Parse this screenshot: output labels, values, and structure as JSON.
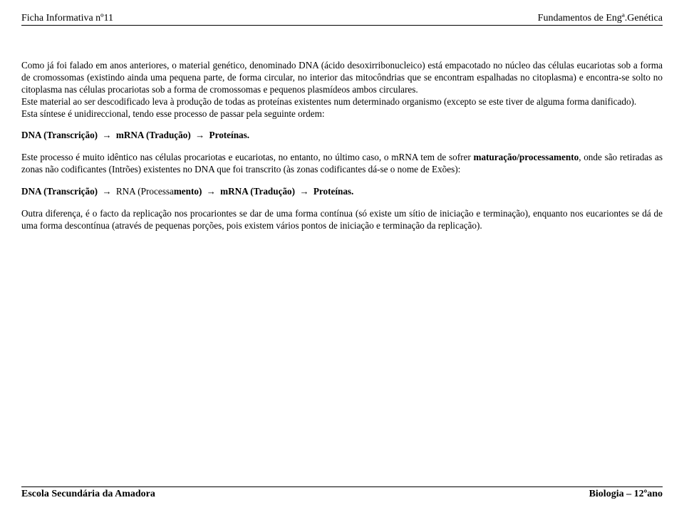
{
  "header": {
    "left": "Ficha Informativa nº11",
    "right": "Fundamentos de Engª.Genética"
  },
  "paragraphs": {
    "p1": "Como já foi falado em anos anteriores, o material genético, denominado DNA (ácido desoxirribonucleico) está empacotado no núcleo das células eucariotas sob a forma de cromossomas (existindo ainda uma pequena parte, de forma circular, no interior das mitocôndrias que se encontram espalhadas no citoplasma) e encontra-se solto no citoplasma nas células procariotas sob a forma de cromossomas e pequenos plasmídeos ambos circulares.",
    "p2": "Este material ao ser descodificado leva à produção de todas as proteínas existentes num determinado organismo (excepto se este tiver de alguma forma danificado).",
    "p3": "Esta síntese é unidireccional, tendo esse processo de passar pela seguinte ordem:",
    "p5": "Este processo é muito idêntico nas células procariotas e eucariotas, no entanto, no último caso, o mRNA tem de sofrer ",
    "p5b": "maturação/processamento",
    "p5c": ", onde são retiradas as zonas não codificantes (Intrões) existentes no DNA que foi transcrito (às zonas codificantes dá-se o nome de Exões):",
    "p7": "Outra diferença, é o facto da replicação nos procariontes se dar de uma forma contínua (só existe um sítio de iniciação e terminação), enquanto nos eucariontes se dá de uma forma descontínua (através de pequenas porções, pois existem vários pontos de iniciação e terminação da replicação)."
  },
  "flow1": {
    "a": "DNA (Transcrição)",
    "b": "mRNA (Tradução)",
    "c": "Proteínas."
  },
  "flow2": {
    "a": "DNA (Transcrição)",
    "b_pre": "RNA (Processa",
    "b_bold": "mento)",
    "c": "mRNA (Tradução)",
    "d": "Proteínas."
  },
  "arrow": "→",
  "footer": {
    "left": "Escola Secundária da Amadora",
    "right": "Biologia – 12ºano"
  }
}
